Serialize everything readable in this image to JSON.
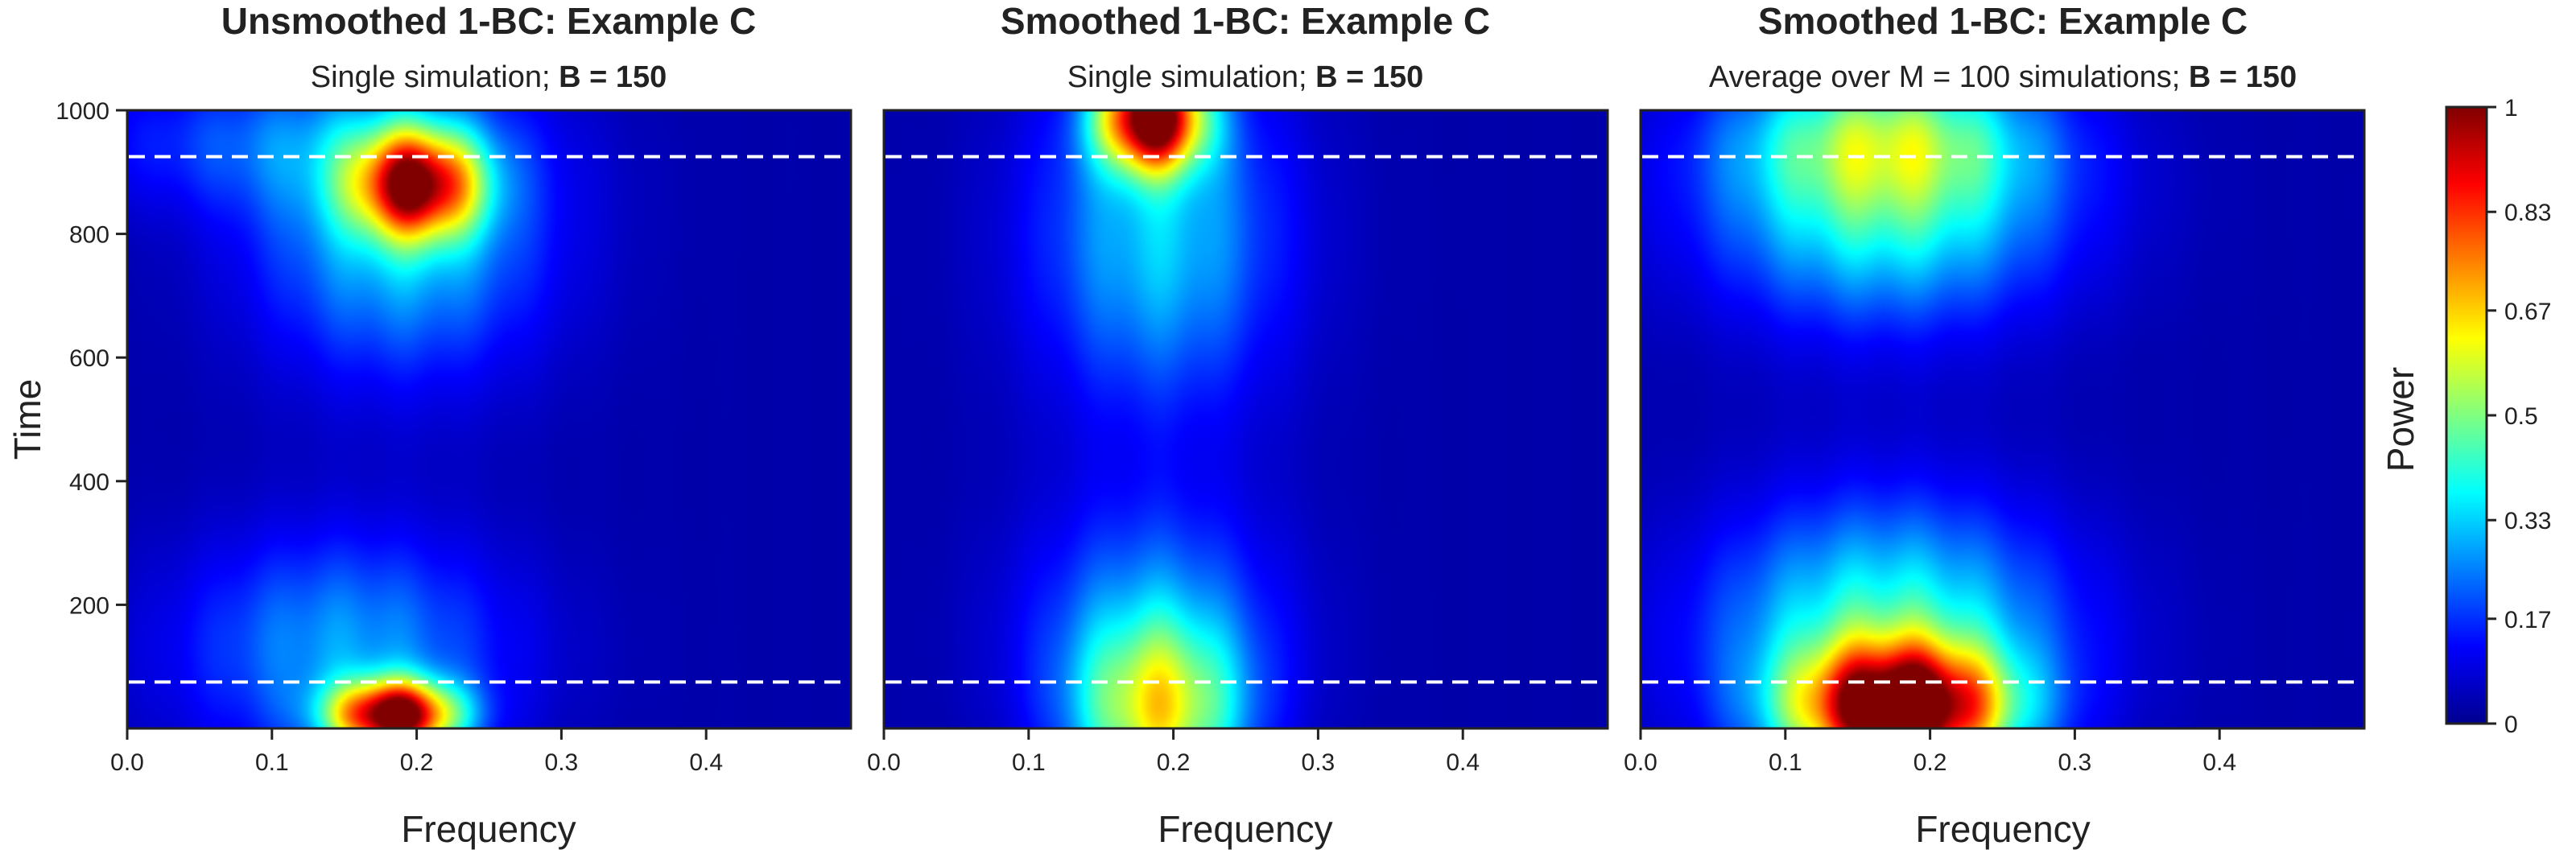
{
  "chart_data": [
    {
      "type": "heatmap",
      "title": "Unsmoothed 1-BC: Example C",
      "subtitle_prefix": "Single simulation; ",
      "subtitle_bold": "B = 150",
      "xlabel": "Frequency",
      "ylabel": "Time",
      "xlim": [
        0,
        0.5
      ],
      "ylim": [
        0,
        1000
      ],
      "x_ticks": [
        "0.0",
        "0.1",
        "0.2",
        "0.3",
        "0.4"
      ],
      "y_ticks": [
        "200",
        "400",
        "600",
        "800",
        "1000"
      ],
      "reference_lines_y": [
        75,
        925
      ],
      "hotspots": [
        {
          "f": 0.185,
          "t": 20,
          "sf": 0.03,
          "st": 40,
          "power": 0.95
        },
        {
          "f": 0.2,
          "t": 880,
          "sf": 0.03,
          "st": 60,
          "power": 0.75
        },
        {
          "f": 0.15,
          "t": 130,
          "sf": 0.08,
          "st": 130,
          "power": 0.25
        },
        {
          "f": 0.19,
          "t": 800,
          "sf": 0.07,
          "st": 160,
          "power": 0.3
        },
        {
          "f": 0.1,
          "t": 950,
          "sf": 0.1,
          "st": 80,
          "power": 0.15
        }
      ]
    },
    {
      "type": "heatmap",
      "title": "Smoothed 1-BC: Example C",
      "subtitle_prefix": "Single simulation; ",
      "subtitle_bold": "B = 150",
      "xlabel": "Frequency",
      "ylabel": "",
      "xlim": [
        0,
        0.5
      ],
      "ylim": [
        0,
        1000
      ],
      "x_ticks": [
        "0.0",
        "0.1",
        "0.2",
        "0.3",
        "0.4"
      ],
      "y_ticks": [],
      "reference_lines_y": [
        75,
        925
      ],
      "hotspots": [
        {
          "f": 0.185,
          "t": 990,
          "sf": 0.025,
          "st": 60,
          "power": 0.95
        },
        {
          "f": 0.19,
          "t": 20,
          "sf": 0.04,
          "st": 100,
          "power": 0.45
        },
        {
          "f": 0.185,
          "t": 150,
          "sf": 0.06,
          "st": 150,
          "power": 0.25
        },
        {
          "f": 0.19,
          "t": 800,
          "sf": 0.06,
          "st": 200,
          "power": 0.3
        }
      ]
    },
    {
      "type": "heatmap",
      "title": "Smoothed 1-BC: Example C",
      "subtitle_prefix": "Average over M = 100 simulations; ",
      "subtitle_bold": "B = 150",
      "xlabel": "Frequency",
      "ylabel": "",
      "xlim": [
        0,
        0.5
      ],
      "ylim": [
        0,
        1000
      ],
      "x_ticks": [
        "0.0",
        "0.1",
        "0.2",
        "0.3",
        "0.4"
      ],
      "y_ticks": [],
      "reference_lines_y": [
        75,
        925
      ],
      "hotspots": [
        {
          "f": 0.18,
          "t": 30,
          "sf": 0.05,
          "st": 70,
          "power": 0.95
        },
        {
          "f": 0.17,
          "t": 150,
          "sf": 0.085,
          "st": 150,
          "power": 0.4
        },
        {
          "f": 0.17,
          "t": 860,
          "sf": 0.085,
          "st": 140,
          "power": 0.4
        },
        {
          "f": 0.17,
          "t": 960,
          "sf": 0.07,
          "st": 80,
          "power": 0.25
        }
      ]
    }
  ],
  "colorbar": {
    "label": "Power",
    "range": [
      0,
      1
    ],
    "ticks": [
      "0",
      "0.17",
      "0.33",
      "0.5",
      "0.67",
      "0.83",
      "1"
    ],
    "colors": [
      "#00008f",
      "#0000ff",
      "#0080ff",
      "#00ffff",
      "#80ff80",
      "#ffff00",
      "#ff8000",
      "#ff0000",
      "#800000"
    ]
  },
  "colors": {
    "reference_line": "#ffffff",
    "frame": "#222222",
    "background": "#00008f"
  }
}
